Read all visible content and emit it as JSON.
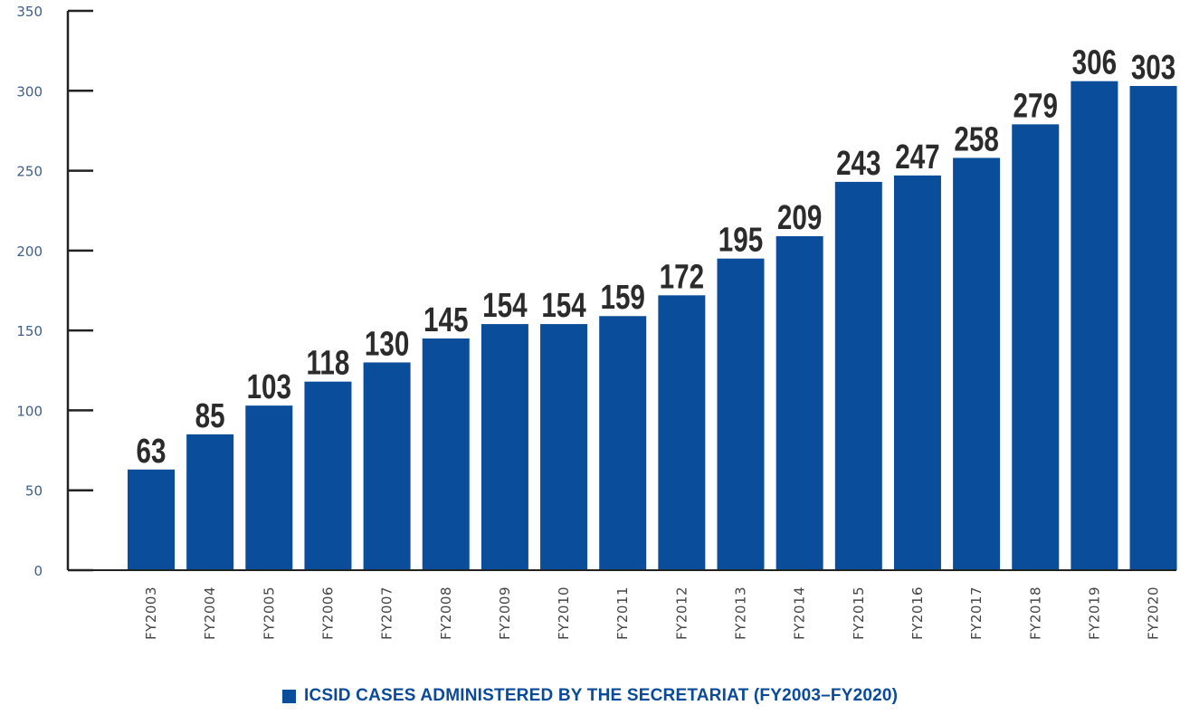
{
  "chart_data": {
    "type": "bar",
    "categories": [
      "FY2003",
      "FY2004",
      "FY2005",
      "FY2006",
      "FY2007",
      "FY2008",
      "FY2009",
      "FY2010",
      "FY2011",
      "FY2012",
      "FY2013",
      "FY2014",
      "FY2015",
      "FY2016",
      "FY2017",
      "FY2018",
      "FY2019",
      "FY2020"
    ],
    "series": [
      {
        "name": "ICSID CASES ADMINISTERED BY THE SECRETARIAT (FY2003–FY2020)",
        "values": [
          63,
          85,
          103,
          118,
          130,
          145,
          154,
          154,
          159,
          172,
          195,
          209,
          243,
          247,
          258,
          279,
          306,
          303
        ]
      }
    ],
    "yticks": [
      0,
      50,
      100,
      150,
      200,
      250,
      300,
      350
    ],
    "ylim": [
      0,
      350
    ],
    "grid": false,
    "legend_position": "bottom-center",
    "bar_color": "#0a4d9b"
  }
}
